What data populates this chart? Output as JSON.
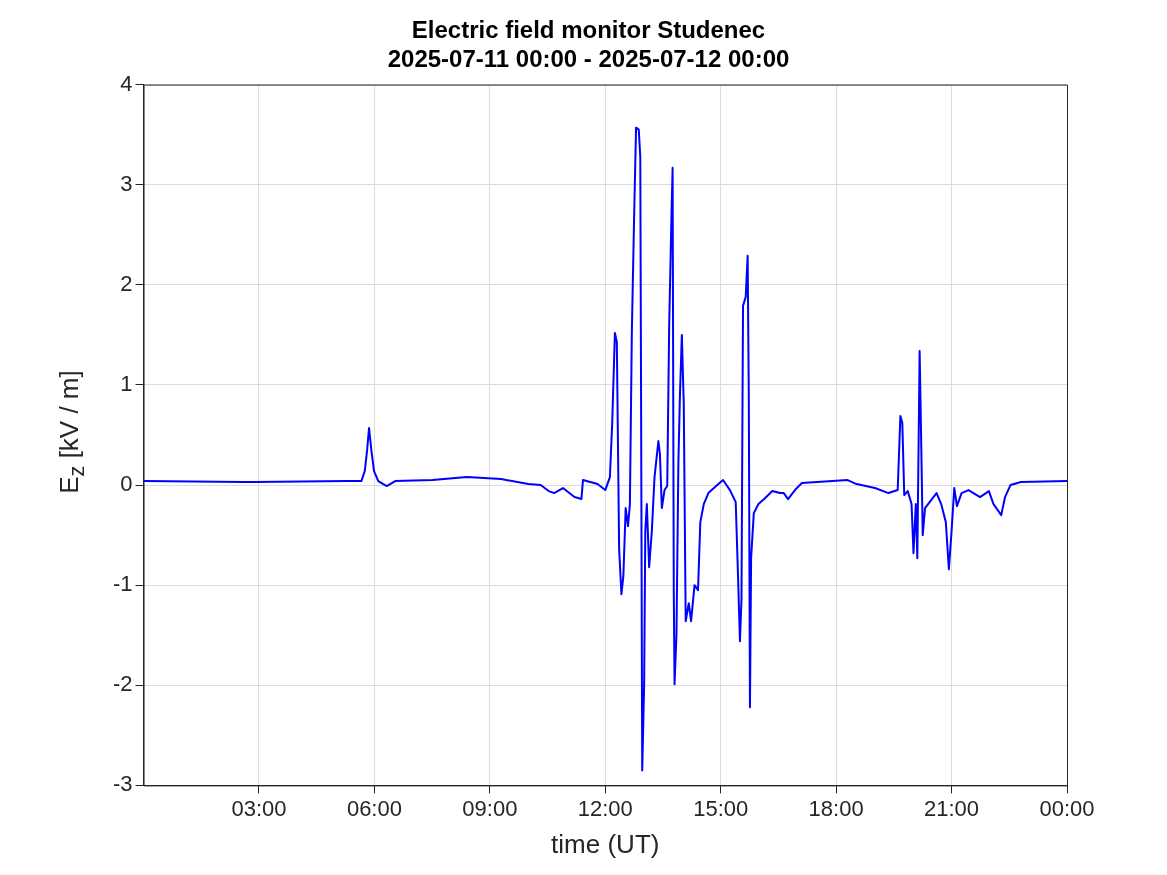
{
  "chart_data": {
    "type": "line",
    "title": "Electric field monitor Studenec\n2025-07-11 00:00 - 2025-07-12 00:00",
    "xlabel": "time (UT)",
    "ylabel": "E$_{z}$ [kV / m]",
    "xlim": [
      0,
      24
    ],
    "xticks": [
      {
        "value": 3,
        "label": "03:00"
      },
      {
        "value": 6,
        "label": "06:00"
      },
      {
        "value": 9,
        "label": "09:00"
      },
      {
        "value": 12,
        "label": "12:00"
      },
      {
        "value": 15,
        "label": "15:00"
      },
      {
        "value": 18,
        "label": "18:00"
      },
      {
        "value": 21,
        "label": "21:00"
      },
      {
        "value": 24,
        "label": "00:00"
      }
    ],
    "ylim": [
      -3,
      4
    ],
    "yticks": [
      -3,
      -2,
      -1,
      0,
      1,
      2,
      3,
      4
    ],
    "grid": true,
    "legend": false,
    "marker": "none",
    "line_style": "solid",
    "series": [
      {
        "color": "#0000ff",
        "x": [
          0,
          2.6,
          5.3,
          5.66,
          5.75,
          5.81,
          5.86,
          5.92,
          5.99,
          6.1,
          6.32,
          6.54,
          7.51,
          8.4,
          9.29,
          10.0,
          10.32,
          10.53,
          10.67,
          10.9,
          11.2,
          11.38,
          11.42,
          11.8,
          12.0,
          12.12,
          12.18,
          12.25,
          12.3,
          12.36,
          12.42,
          12.47,
          12.53,
          12.59,
          12.64,
          12.69,
          12.75,
          12.8,
          12.87,
          12.91,
          12.93,
          12.96,
          13.01,
          13.04,
          13.08,
          13.14,
          13.21,
          13.28,
          13.38,
          13.42,
          13.47,
          13.54,
          13.61,
          13.66,
          13.72,
          13.75,
          13.78,
          13.8,
          13.85,
          13.9,
          13.94,
          13.99,
          14.04,
          14.09,
          14.17,
          14.23,
          14.32,
          14.41,
          14.47,
          14.56,
          14.68,
          14.88,
          15.06,
          15.24,
          15.39,
          15.45,
          15.5,
          15.54,
          15.58,
          15.65,
          15.7,
          15.73,
          15.76,
          15.79,
          15.86,
          15.98,
          16.13,
          16.34,
          16.54,
          16.64,
          16.75,
          16.93,
          17.11,
          18.3,
          18.53,
          19.01,
          19.36,
          19.6,
          19.67,
          19.72,
          19.77,
          19.86,
          19.96,
          20.01,
          20.07,
          20.11,
          20.17,
          20.22,
          20.25,
          20.31,
          20.43,
          20.61,
          20.73,
          20.85,
          20.93,
          21.0,
          21.07,
          21.14,
          21.26,
          21.44,
          21.74,
          21.97,
          22.09,
          22.29,
          22.39,
          22.53,
          22.8,
          24
        ],
        "values": [
          0.04,
          0.03,
          0.04,
          0.04,
          0.14,
          0.35,
          0.57,
          0.35,
          0.14,
          0.04,
          -0.01,
          0.04,
          0.05,
          0.08,
          0.06,
          0.01,
          0.0,
          -0.06,
          -0.08,
          -0.03,
          -0.12,
          -0.14,
          0.05,
          0.01,
          -0.05,
          0.08,
          0.62,
          1.52,
          1.43,
          -0.64,
          -1.09,
          -0.91,
          -0.23,
          -0.41,
          -0.19,
          1.52,
          2.69,
          3.57,
          3.55,
          3.28,
          0.89,
          -2.85,
          -1.99,
          -0.46,
          -0.19,
          -0.82,
          -0.46,
          0.08,
          0.44,
          0.31,
          -0.23,
          -0.05,
          -0.01,
          1.57,
          2.69,
          3.17,
          -1.05,
          -1.99,
          -1.5,
          0.22,
          0.89,
          1.5,
          0.8,
          -1.36,
          -1.18,
          -1.36,
          -1.0,
          -1.05,
          -0.37,
          -0.19,
          -0.08,
          -0.01,
          0.05,
          -0.05,
          -0.17,
          -0.91,
          -1.56,
          -1.14,
          1.79,
          1.88,
          2.29,
          0.89,
          -2.22,
          -0.73,
          -0.28,
          -0.19,
          -0.14,
          -0.06,
          -0.08,
          -0.08,
          -0.14,
          -0.05,
          0.02,
          0.05,
          0.01,
          -0.03,
          -0.08,
          -0.05,
          0.69,
          0.62,
          -0.1,
          -0.06,
          -0.19,
          -0.68,
          -0.19,
          -0.73,
          1.34,
          0.22,
          -0.5,
          -0.23,
          -0.17,
          -0.08,
          -0.19,
          -0.37,
          -0.84,
          -0.46,
          -0.03,
          -0.21,
          -0.08,
          -0.05,
          -0.12,
          -0.06,
          -0.19,
          -0.3,
          -0.12,
          0.0,
          0.03,
          0.04
        ]
      }
    ]
  }
}
